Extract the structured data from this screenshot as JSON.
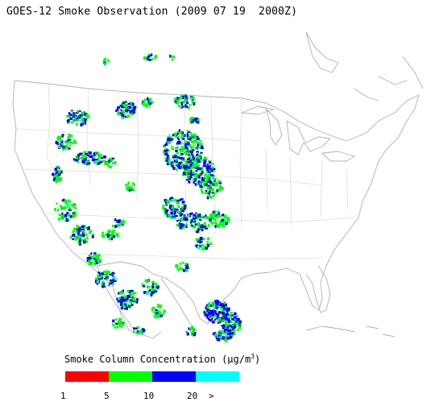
{
  "title": "GOES-12 Smoke Observation (2009 07 19  2000Z)",
  "legend": {
    "title_prefix": "Smoke Column Concentration (",
    "title_mu": "μ",
    "title_unit": "g/m",
    "title_sup": "3",
    "title_suffix": ")",
    "colors": [
      "#ff0000",
      "#00ff00",
      "#0000ff",
      "#00ffff"
    ],
    "labels": [
      "1",
      "5",
      "10",
      "20",
      ">"
    ]
  }
}
